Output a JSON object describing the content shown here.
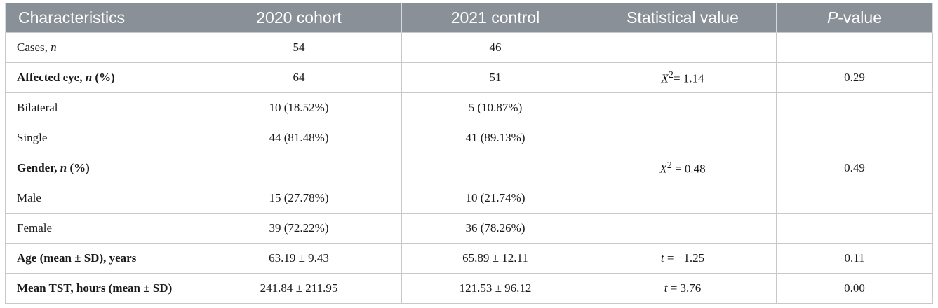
{
  "headers": [
    "Characteristics",
    "2020 cohort",
    "2021 control",
    "Statistical value",
    "P",
    "-value"
  ],
  "rows": [
    {
      "label": "Cases, ",
      "label_var": "n",
      "label_tail": "",
      "c2020": "54",
      "c2021": "46",
      "stat_var": "",
      "stat": "",
      "p": ""
    },
    {
      "label": "Affected eye, ",
      "label_var": "n",
      "label_tail": " (%)",
      "c2020": "64",
      "c2021": "51",
      "stat_var": "X",
      "stat_sup": "2",
      "stat": "= 1.14",
      "p": "0.29"
    },
    {
      "label": "Bilateral",
      "label_var": "",
      "label_tail": "",
      "c2020": "10 (18.52%)",
      "c2021": "5 (10.87%)",
      "stat_var": "",
      "stat": "",
      "p": ""
    },
    {
      "label": "Single",
      "label_var": "",
      "label_tail": "",
      "c2020": "44 (81.48%)",
      "c2021": "41 (89.13%)",
      "stat_var": "",
      "stat": "",
      "p": ""
    },
    {
      "label": "Gender, ",
      "label_var": "n",
      "label_tail": " (%)",
      "c2020": "",
      "c2021": "",
      "stat_var": "X",
      "stat_sup": "2",
      "stat": " = 0.48",
      "p": "0.49"
    },
    {
      "label": "Male",
      "label_var": "",
      "label_tail": "",
      "c2020": "15 (27.78%)",
      "c2021": "10 (21.74%)",
      "stat_var": "",
      "stat": "",
      "p": ""
    },
    {
      "label": "Female",
      "label_var": "",
      "label_tail": "",
      "c2020": "39 (72.22%)",
      "c2021": "36 (78.26%)",
      "stat_var": "",
      "stat": "",
      "p": ""
    },
    {
      "label": "Age (mean ± SD), years",
      "label_var": "",
      "label_tail": "",
      "c2020": "63.19 ± 9.43",
      "c2021": "65.89 ± 12.11",
      "stat_var": "t",
      "stat": " = −1.25",
      "p": "0.11"
    },
    {
      "label": "Mean TST, hours (mean ± SD)",
      "label_var": "",
      "label_tail": "",
      "c2020": "241.84 ± 211.95",
      "c2021": "121.53 ± 96.12",
      "stat_var": "t",
      "stat": " = 3.76",
      "p": "0.00"
    }
  ]
}
